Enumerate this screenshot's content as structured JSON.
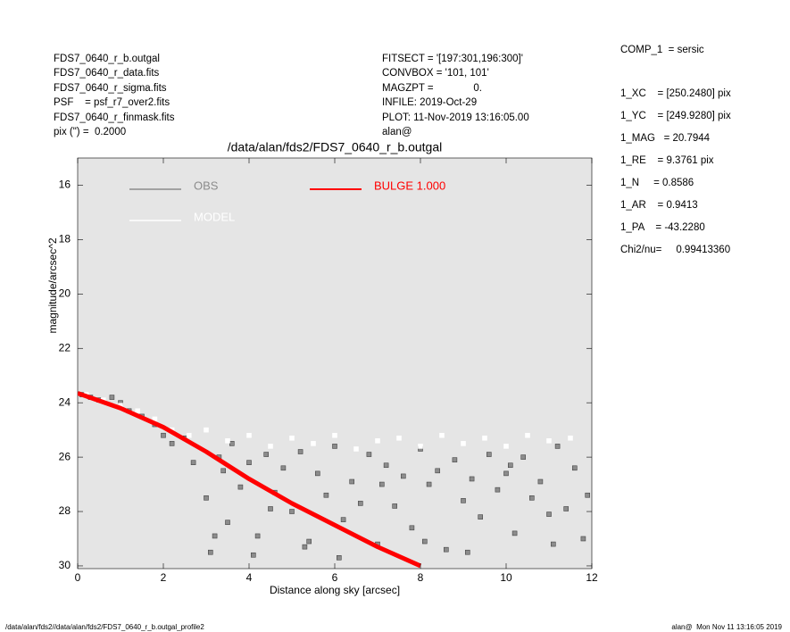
{
  "chart_data": {
    "type": "scatter",
    "title": "/data/alan/fds2/FDS7_0640_r_b.outgal",
    "xlabel": "Distance along sky [arcsec]",
    "ylabel": "magnitude/arcsec^2",
    "xlim": [
      0,
      12
    ],
    "xticks": [
      0,
      2,
      4,
      6,
      8,
      10,
      12
    ],
    "ylim": [
      30.1,
      15
    ],
    "yticks": [
      16,
      18,
      20,
      22,
      24,
      26,
      28,
      30
    ],
    "background": "#e5e5e5",
    "series": [
      {
        "name": "OBS",
        "color": "#8c8c8c",
        "mode": "markers",
        "x": [
          0.1,
          0.3,
          0.5,
          0.8,
          1.0,
          1.2,
          1.5,
          1.8,
          2.0,
          2.2,
          2.5,
          2.7,
          3.0,
          3.1,
          3.3,
          3.5,
          3.6,
          3.8,
          4.0,
          4.2,
          4.4,
          4.6,
          4.8,
          5.0,
          5.2,
          5.4,
          5.6,
          5.8,
          6.0,
          6.2,
          6.4,
          6.6,
          6.8,
          7.0,
          7.2,
          7.4,
          7.6,
          7.8,
          8.0,
          8.2,
          8.4,
          8.6,
          8.8,
          9.0,
          9.2,
          9.4,
          9.6,
          9.8,
          10.0,
          10.2,
          10.4,
          10.6,
          10.8,
          11.0,
          11.2,
          11.4,
          11.6,
          11.8,
          3.2,
          3.4,
          4.1,
          4.5,
          5.3,
          6.1,
          7.1,
          8.1,
          9.1,
          10.1,
          11.1,
          11.9
        ],
        "y": [
          23.7,
          23.8,
          23.9,
          23.8,
          24.0,
          24.3,
          24.5,
          24.8,
          25.2,
          25.5,
          25.3,
          26.2,
          27.5,
          29.5,
          26.0,
          28.4,
          25.5,
          27.1,
          26.2,
          28.9,
          25.9,
          27.3,
          26.4,
          28.0,
          25.8,
          29.1,
          26.6,
          27.4,
          25.6,
          28.3,
          26.9,
          27.7,
          25.9,
          29.2,
          26.3,
          27.8,
          26.7,
          28.6,
          25.7,
          27.0,
          26.5,
          29.4,
          26.1,
          27.6,
          26.8,
          28.2,
          25.9,
          27.2,
          26.6,
          28.8,
          26.0,
          27.5,
          26.9,
          28.1,
          25.6,
          27.9,
          26.4,
          29.0,
          28.9,
          26.5,
          29.6,
          27.9,
          29.3,
          29.7,
          27.0,
          29.1,
          29.5,
          26.3,
          29.2,
          27.4
        ]
      },
      {
        "name": "MODEL",
        "color": "#ffffff",
        "mode": "markers",
        "x": [
          0.2,
          0.6,
          1.0,
          1.4,
          1.8,
          2.2,
          2.6,
          3.0,
          3.5,
          4.0,
          4.5,
          5.0,
          5.5,
          6.0,
          6.5,
          7.0,
          7.5,
          8.0,
          8.5,
          9.0,
          9.5,
          10.0,
          10.5,
          11.0,
          11.5
        ],
        "y": [
          23.7,
          23.9,
          24.1,
          24.3,
          24.6,
          25.0,
          25.2,
          25.0,
          25.4,
          25.2,
          25.6,
          25.3,
          25.5,
          25.2,
          25.7,
          25.4,
          25.3,
          25.6,
          25.2,
          25.5,
          25.3,
          25.6,
          25.2,
          25.4,
          25.3
        ]
      },
      {
        "name": "BULGE  1.000",
        "color": "#ff0000",
        "mode": "lines",
        "x": [
          0,
          1,
          2,
          3,
          4,
          5,
          6,
          7,
          8
        ],
        "y": [
          23.65,
          24.2,
          24.9,
          25.8,
          26.8,
          27.7,
          28.5,
          29.3,
          30.0
        ]
      }
    ],
    "info_left": [
      "FDS7_0640_r_b.outgal",
      "FDS7_0640_r_data.fits",
      "FDS7_0640_r_sigma.fits",
      "PSF    = psf_r7_over2.fits",
      "FDS7_0640_r_finmask.fits",
      "pix (\") =  0.2000"
    ],
    "info_middle": [
      "FITSECT = '[197:301,196:300]'",
      "CONVBOX = '101, 101'",
      "MAGZPT =              0.",
      "INFILE: 2019-Oct-29",
      "PLOT: 11-Nov-2019 13:16:05.00",
      "alan@"
    ],
    "params": [
      "COMP_1  = sersic",
      "1_XC    = [250.2480] pix",
      "1_YC    = [249.9280] pix",
      "1_MAG   = 20.7944",
      "1_RE    = 9.3761 pix",
      "1_N     = 0.8586",
      "1_AR    = 0.9413",
      "1_PA    = -43.2280"
    ],
    "chi2": "Chi2/nu=     0.99413360",
    "footer_left": "/data/alan/fds2//data/alan/fds2/FDS7_0640_r_b.outgal_profile2",
    "footer_right": "alan@  Mon Nov 11 13:16:05 2019"
  }
}
